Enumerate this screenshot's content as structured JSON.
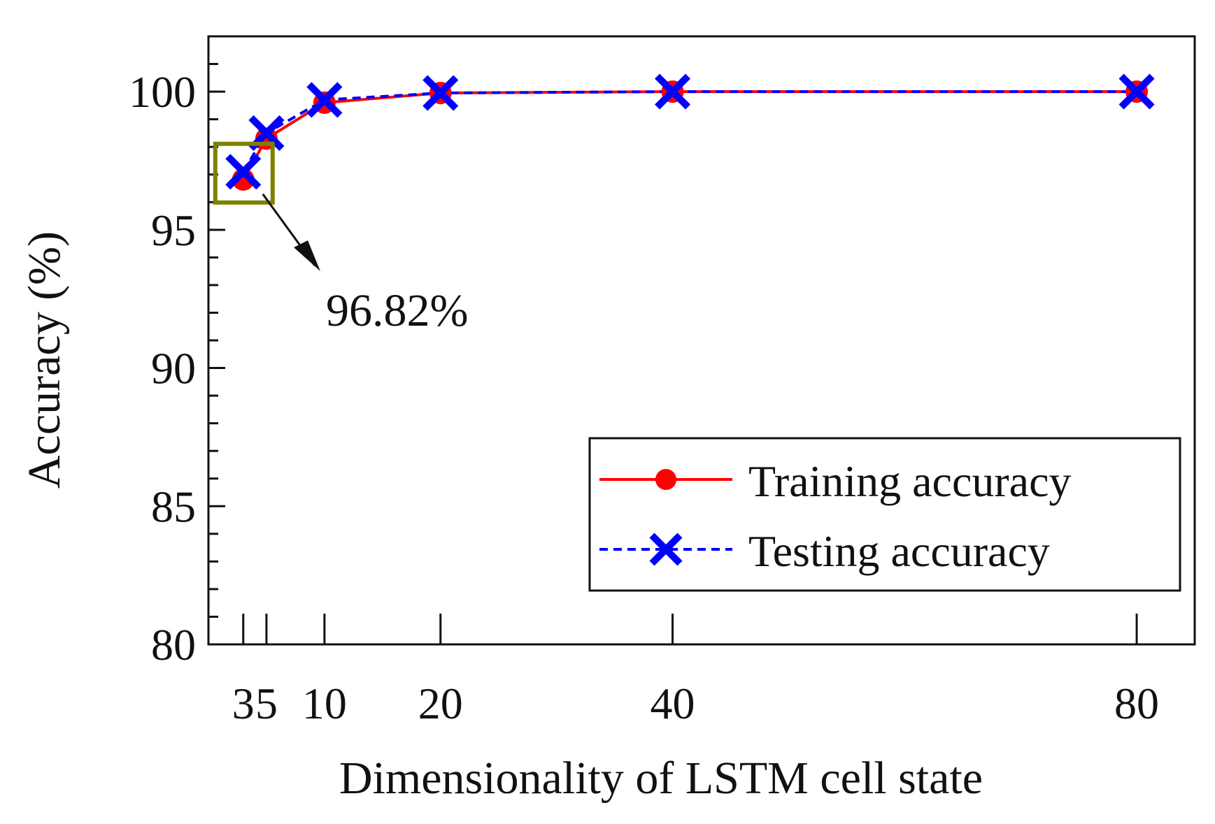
{
  "chart_data": {
    "type": "line",
    "title": "",
    "xlabel": "Dimensionality of  LSTM cell state",
    "ylabel": "Accuracy (%)",
    "x": [
      3,
      5,
      10,
      20,
      40,
      80
    ],
    "x_tick_labels": [
      "3",
      "5",
      "10",
      "20",
      "40",
      "80"
    ],
    "xlim": [
      0,
      85
    ],
    "ylim": [
      80,
      102
    ],
    "y_ticks": [
      80,
      85,
      90,
      95,
      100
    ],
    "y_tick_labels": [
      "80",
      "85",
      "90",
      "95",
      "100"
    ],
    "grid": false,
    "series": [
      {
        "name": "Training accuracy",
        "values": [
          96.82,
          98.3,
          99.6,
          99.95,
          100.0,
          100.0
        ],
        "color": "#ff0000",
        "style": "solid",
        "marker": "circle"
      },
      {
        "name": "Testing accuracy",
        "values": [
          97.1,
          98.5,
          99.7,
          99.95,
          100.0,
          100.0
        ],
        "color": "#0000ff",
        "style": "dashed",
        "marker": "x"
      }
    ],
    "legend": {
      "position": "bottom-right",
      "labels": [
        "Training accuracy",
        "Testing accuracy"
      ]
    },
    "annotation": {
      "text": "96.82%",
      "target_index": 0,
      "box_color": "#808000"
    }
  }
}
